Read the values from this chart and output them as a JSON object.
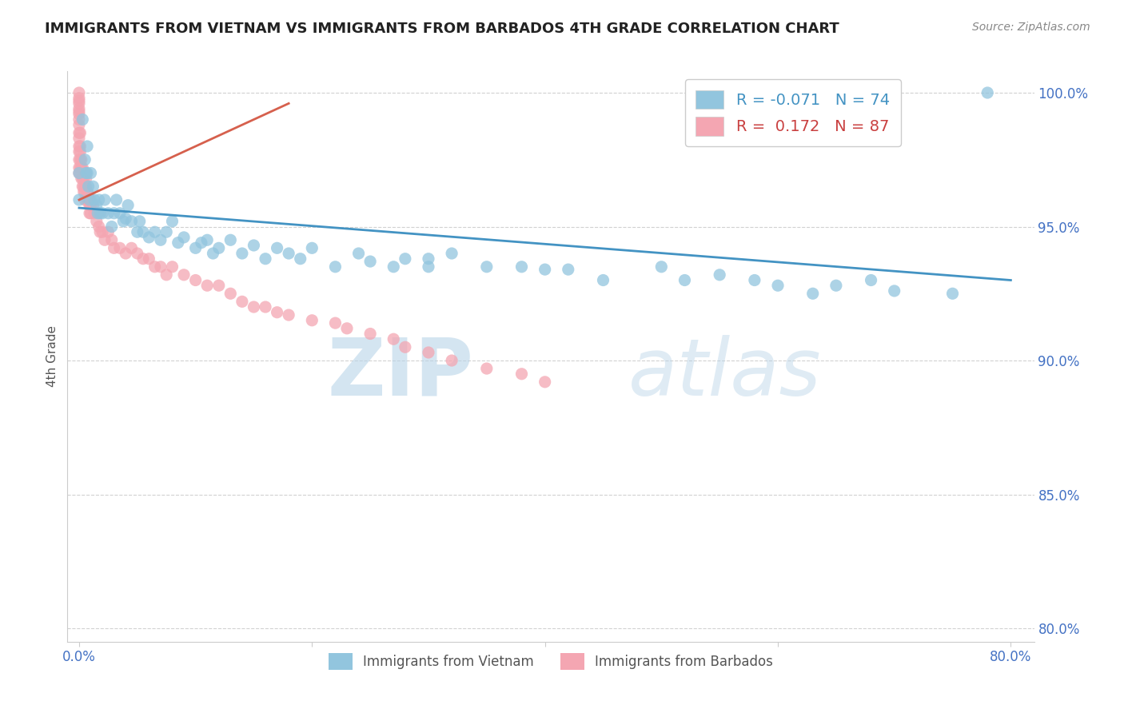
{
  "title": "IMMIGRANTS FROM VIETNAM VS IMMIGRANTS FROM BARBADOS 4TH GRADE CORRELATION CHART",
  "source": "Source: ZipAtlas.com",
  "ylabel": "4th Grade",
  "xlim": [
    -0.01,
    0.82
  ],
  "ylim": [
    0.795,
    1.008
  ],
  "y_ticks": [
    0.8,
    0.85,
    0.9,
    0.95,
    1.0
  ],
  "y_tick_labels": [
    "80.0%",
    "85.0%",
    "90.0%",
    "95.0%",
    "100.0%"
  ],
  "x_ticks": [
    0.0,
    0.2,
    0.4,
    0.6,
    0.8
  ],
  "x_tick_labels": [
    "0.0%",
    "",
    "",
    "",
    "80.0%"
  ],
  "R_vietnam": -0.071,
  "N_vietnam": 74,
  "R_barbados": 0.172,
  "N_barbados": 87,
  "color_vietnam": "#92c5de",
  "color_barbados": "#f4a6b2",
  "line_color_vietnam": "#4393c3",
  "line_color_barbados": "#d6604d",
  "legend_label_vietnam": "Immigrants from Vietnam",
  "legend_label_barbados": "Immigrants from Barbados",
  "watermark_zip": "ZIP",
  "watermark_atlas": "atlas",
  "grid_color": "#cccccc",
  "background_color": "#ffffff",
  "viet_trend_x": [
    0.0,
    0.8
  ],
  "viet_trend_y": [
    0.957,
    0.93
  ],
  "barb_trend_x": [
    0.0,
    0.18
  ],
  "barb_trend_y": [
    0.96,
    0.996
  ],
  "vietnam_scatter_x": [
    0.0,
    0.0,
    0.003,
    0.005,
    0.006,
    0.007,
    0.007,
    0.008,
    0.009,
    0.01,
    0.012,
    0.013,
    0.015,
    0.016,
    0.017,
    0.018,
    0.02,
    0.022,
    0.025,
    0.028,
    0.03,
    0.032,
    0.035,
    0.038,
    0.04,
    0.042,
    0.045,
    0.05,
    0.052,
    0.055,
    0.06,
    0.065,
    0.07,
    0.075,
    0.08,
    0.085,
    0.09,
    0.1,
    0.105,
    0.11,
    0.115,
    0.12,
    0.13,
    0.14,
    0.15,
    0.16,
    0.17,
    0.18,
    0.19,
    0.2,
    0.22,
    0.24,
    0.25,
    0.27,
    0.28,
    0.3,
    0.3,
    0.32,
    0.35,
    0.38,
    0.4,
    0.42,
    0.45,
    0.5,
    0.52,
    0.55,
    0.58,
    0.6,
    0.63,
    0.65,
    0.68,
    0.7,
    0.75,
    0.78
  ],
  "vietnam_scatter_y": [
    0.97,
    0.96,
    0.99,
    0.975,
    0.97,
    0.98,
    0.97,
    0.965,
    0.96,
    0.97,
    0.965,
    0.96,
    0.958,
    0.955,
    0.96,
    0.955,
    0.955,
    0.96,
    0.955,
    0.95,
    0.955,
    0.96,
    0.955,
    0.952,
    0.953,
    0.958,
    0.952,
    0.948,
    0.952,
    0.948,
    0.946,
    0.948,
    0.945,
    0.948,
    0.952,
    0.944,
    0.946,
    0.942,
    0.944,
    0.945,
    0.94,
    0.942,
    0.945,
    0.94,
    0.943,
    0.938,
    0.942,
    0.94,
    0.938,
    0.942,
    0.935,
    0.94,
    0.937,
    0.935,
    0.938,
    0.938,
    0.935,
    0.94,
    0.935,
    0.935,
    0.934,
    0.934,
    0.93,
    0.935,
    0.93,
    0.932,
    0.93,
    0.928,
    0.925,
    0.928,
    0.93,
    0.926,
    0.925,
    1.0
  ],
  "barbados_scatter_x": [
    0.0,
    0.0,
    0.0,
    0.0,
    0.0,
    0.0,
    0.0,
    0.0,
    0.0,
    0.0,
    0.0,
    0.0,
    0.0,
    0.0,
    0.0,
    0.0,
    0.001,
    0.001,
    0.001,
    0.001,
    0.001,
    0.001,
    0.002,
    0.002,
    0.002,
    0.003,
    0.003,
    0.003,
    0.004,
    0.004,
    0.004,
    0.005,
    0.005,
    0.005,
    0.006,
    0.006,
    0.006,
    0.007,
    0.007,
    0.008,
    0.008,
    0.009,
    0.009,
    0.01,
    0.01,
    0.01,
    0.012,
    0.013,
    0.015,
    0.017,
    0.018,
    0.02,
    0.022,
    0.025,
    0.028,
    0.03,
    0.035,
    0.04,
    0.045,
    0.05,
    0.055,
    0.06,
    0.065,
    0.07,
    0.075,
    0.08,
    0.09,
    0.1,
    0.11,
    0.12,
    0.13,
    0.14,
    0.15,
    0.16,
    0.17,
    0.18,
    0.2,
    0.22,
    0.23,
    0.25,
    0.27,
    0.28,
    0.3,
    0.32,
    0.35,
    0.38,
    0.4
  ],
  "barbados_scatter_y": [
    1.0,
    0.998,
    0.997,
    0.996,
    0.994,
    0.993,
    0.992,
    0.99,
    0.988,
    0.985,
    0.983,
    0.98,
    0.978,
    0.975,
    0.972,
    0.97,
    0.985,
    0.98,
    0.978,
    0.975,
    0.972,
    0.97,
    0.975,
    0.972,
    0.968,
    0.972,
    0.968,
    0.965,
    0.968,
    0.965,
    0.963,
    0.965,
    0.963,
    0.96,
    0.97,
    0.968,
    0.965,
    0.963,
    0.96,
    0.962,
    0.96,
    0.958,
    0.955,
    0.96,
    0.958,
    0.955,
    0.958,
    0.955,
    0.952,
    0.95,
    0.948,
    0.948,
    0.945,
    0.948,
    0.945,
    0.942,
    0.942,
    0.94,
    0.942,
    0.94,
    0.938,
    0.938,
    0.935,
    0.935,
    0.932,
    0.935,
    0.932,
    0.93,
    0.928,
    0.928,
    0.925,
    0.922,
    0.92,
    0.92,
    0.918,
    0.917,
    0.915,
    0.914,
    0.912,
    0.91,
    0.908,
    0.905,
    0.903,
    0.9,
    0.897,
    0.895,
    0.892
  ]
}
